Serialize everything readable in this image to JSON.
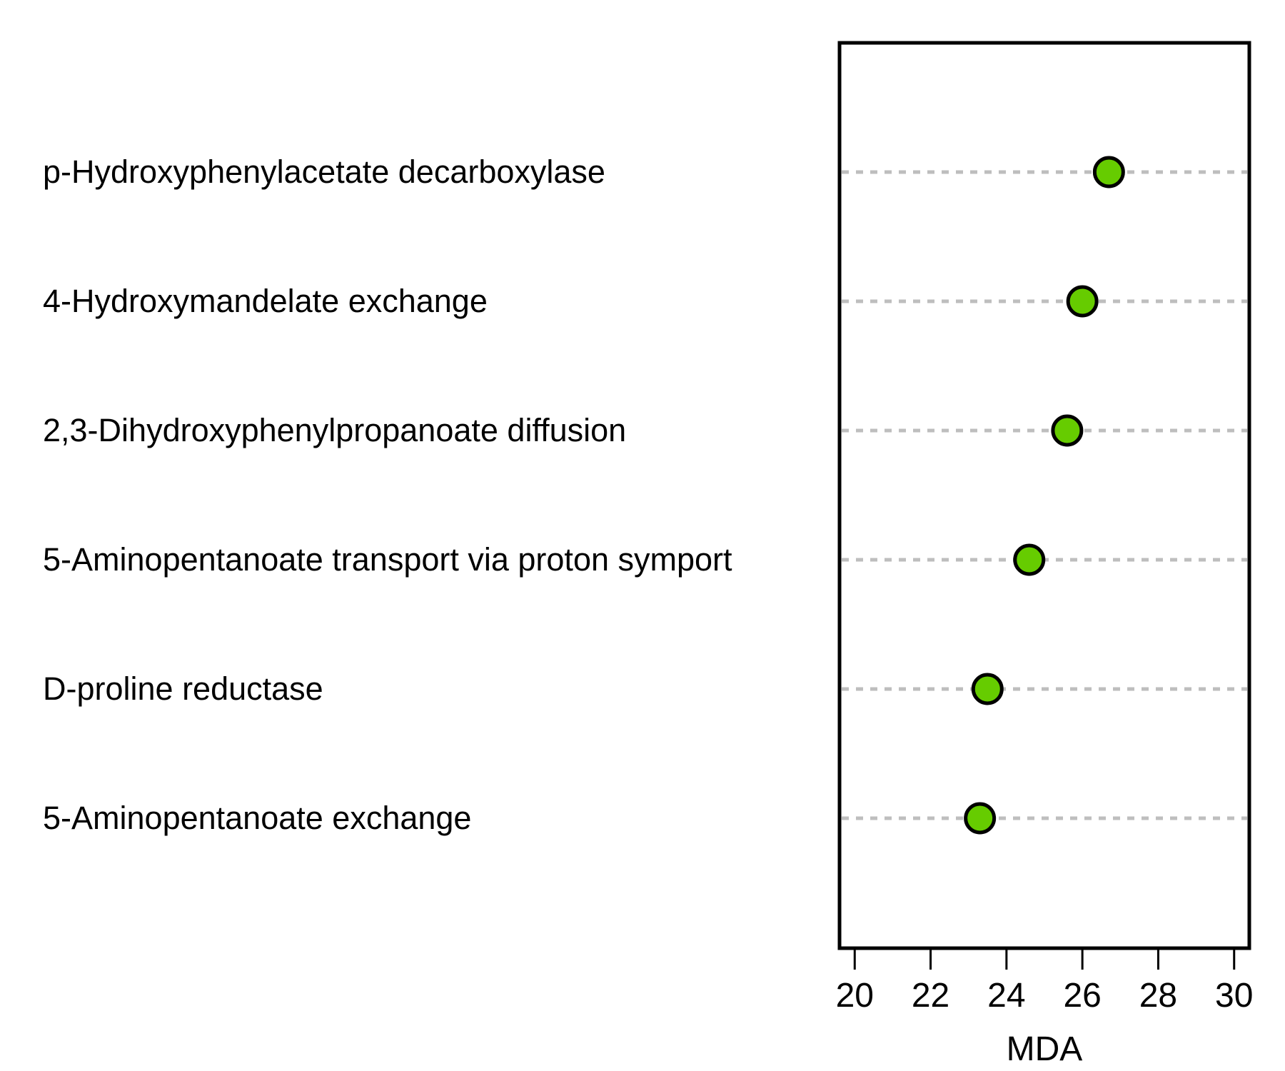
{
  "chart_data": {
    "type": "scatter",
    "subtype": "dot-plot",
    "title": "",
    "xlabel": "MDA",
    "ylabel": "",
    "xlim": [
      19.6,
      30.4
    ],
    "xticks": [
      20,
      22,
      24,
      26,
      28,
      30
    ],
    "grid": "horizontal dotted guide lines per category",
    "legend": "none",
    "colors": {
      "point_fill": "#66cc00",
      "point_stroke": "#000000",
      "guide": "#bebebe",
      "frame": "#000000"
    },
    "categories": [
      "p-Hydroxyphenylacetate decarboxylase",
      "4-Hydroxymandelate exchange",
      "2,3-Dihydroxyphenylpropanoate diffusion",
      "5-Aminopentanoate transport via proton symport",
      "D-proline reductase",
      "5-Aminopentanoate exchange"
    ],
    "values": [
      26.7,
      26.0,
      25.6,
      24.6,
      23.5,
      23.3
    ]
  }
}
